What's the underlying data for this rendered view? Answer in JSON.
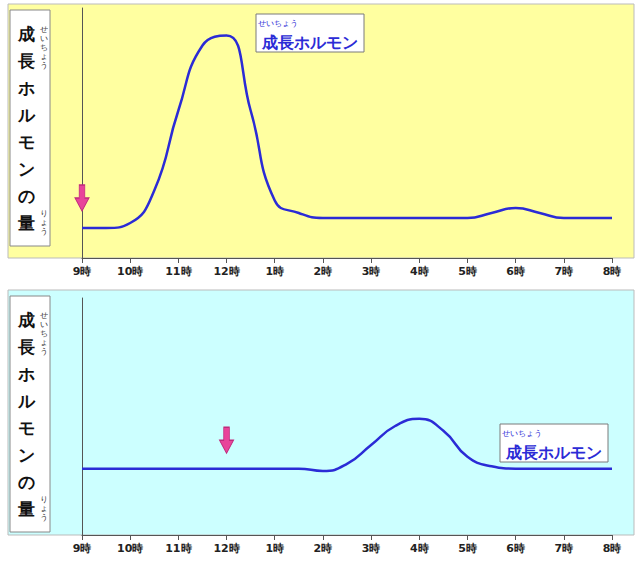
{
  "chart_data": [
    {
      "type": "line",
      "ylabel": "成長ホルモンの量",
      "ylabel_ruby": [
        {
          "over": "成長",
          "text": "せいちょう"
        },
        {
          "over": "量",
          "text": "りょう"
        }
      ],
      "categories": [
        "9時",
        null,
        "10時",
        null,
        "11時",
        null,
        "12時",
        null,
        "1時",
        null,
        "2時",
        null,
        "3時",
        null,
        "4時",
        null,
        "5時",
        null,
        "6時",
        null,
        "7時",
        null,
        "8時"
      ],
      "series": [
        {
          "name": "成長ホルモン",
          "name_ruby": {
            "over": "成長",
            "text": "せいちょう"
          },
          "color": "#2b2bd6",
          "values": [
            12,
            12,
            14,
            27,
            59,
            85,
            89,
            59,
            23,
            18,
            16,
            16,
            16,
            16,
            16,
            16,
            16,
            18,
            20,
            18,
            16,
            16,
            16
          ]
        }
      ],
      "ylim": [
        0,
        100
      ],
      "tick_labels": "x",
      "grid": false,
      "arrow": "9時"
    },
    {
      "type": "line",
      "ylabel": "成長ホルモンの量",
      "ylabel_ruby": [
        {
          "over": "成長",
          "text": "せいちょう"
        },
        {
          "over": "量",
          "text": "りょう"
        }
      ],
      "categories": [
        "9時",
        null,
        "10時",
        null,
        "11時",
        null,
        "12時",
        null,
        "1時",
        null,
        "2時",
        null,
        "3時",
        null,
        "4時",
        null,
        "5時",
        null,
        "6時",
        null,
        "7時",
        null,
        "8時"
      ],
      "series": [
        {
          "name": "成長ホルモン",
          "name_ruby": {
            "over": "成長",
            "text": "せいちょう"
          },
          "color": "#2b2bd6",
          "values": [
            28,
            28,
            28,
            28,
            28,
            28,
            28,
            28,
            28,
            28,
            27,
            30,
            38,
            46,
            49,
            44,
            33,
            29,
            28,
            28,
            28,
            28,
            28
          ]
        }
      ],
      "ylim": [
        0,
        100
      ],
      "tick_labels": "x",
      "grid": false,
      "arrow": "12時"
    }
  ]
}
